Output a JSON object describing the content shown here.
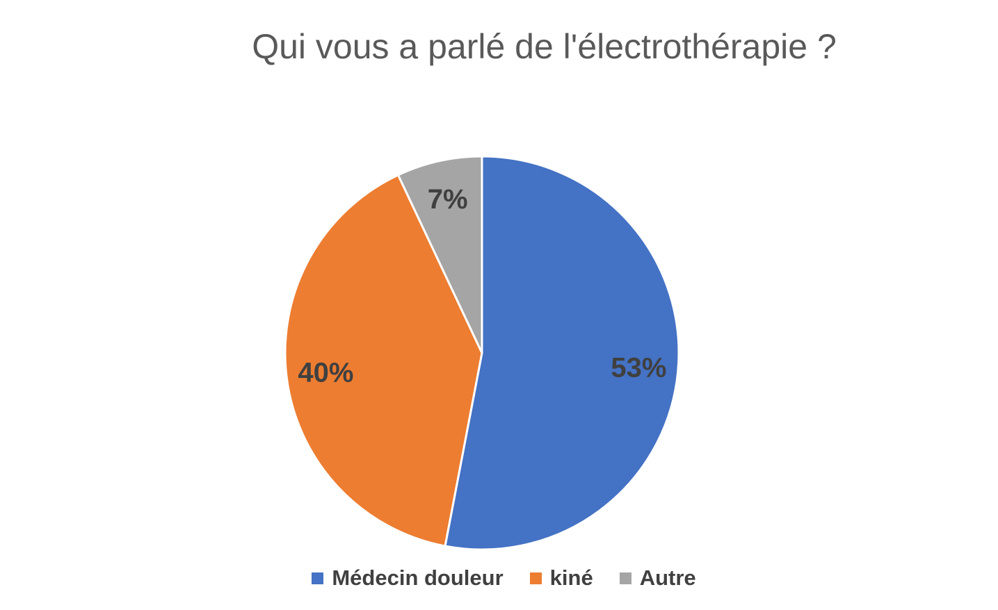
{
  "chart_data": {
    "type": "pie",
    "title": "Qui vous a parlé de l'électrothérapie ?",
    "categories": [
      "Médecin douleur",
      "kiné",
      "Autre"
    ],
    "values": [
      53,
      40,
      7
    ],
    "data_labels": [
      "53%",
      "40%",
      "7%"
    ],
    "colors": [
      "#4472C4",
      "#ED7D31",
      "#A5A5A5"
    ],
    "start_angle_deg": 0,
    "direction": "clockwise",
    "legend_position": "bottom"
  }
}
